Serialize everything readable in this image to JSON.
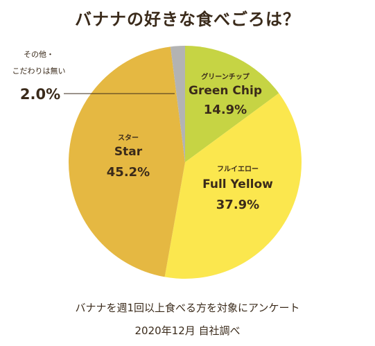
{
  "title": "バナナの好きな食べごろは？",
  "chart_data": {
    "type": "pie",
    "title": "バナナの好きな食べごろは？",
    "slices": [
      {
        "label_jp": "グリーンチップ",
        "label_en": "Green Chip",
        "label": "14.9%",
        "value": 14.9,
        "color": "#c6d444"
      },
      {
        "label_jp": "フルイエロー",
        "label_en": "Full Yellow",
        "label": "37.9%",
        "value": 37.9,
        "color": "#fbe74e"
      },
      {
        "label_jp": "スター",
        "label_en": "Star",
        "label": "45.2%",
        "value": 45.2,
        "color": "#e5b842"
      },
      {
        "label_jp": "その他・",
        "label_jp2": "こだわりは無い",
        "label": "2.0%",
        "value": 2.0,
        "color": "#b3b3b3"
      }
    ]
  },
  "footnote": {
    "line1": "バナナを週1回以上食べる方を対象にアンケート",
    "line2": "2020年12月 自社調べ"
  }
}
